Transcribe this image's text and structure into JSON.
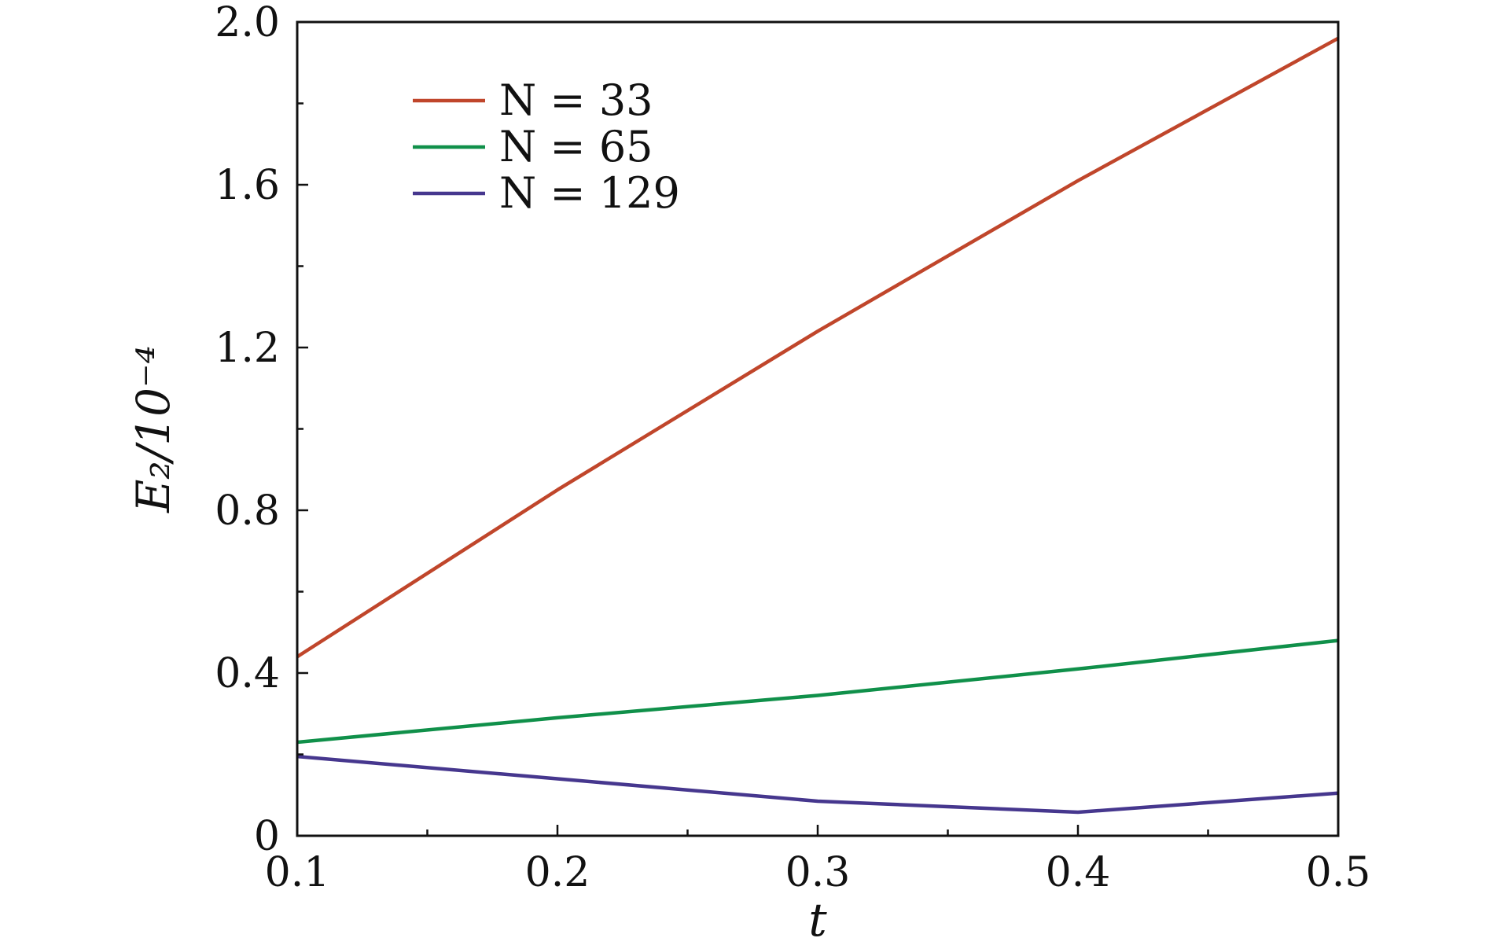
{
  "chart_data": {
    "type": "line",
    "title": "",
    "xlabel": "t",
    "ylabel": "E₂/10⁻⁴",
    "xlim": [
      0.1,
      0.5
    ],
    "ylim": [
      0,
      2.0
    ],
    "x_ticks": [
      0.1,
      0.2,
      0.3,
      0.4,
      0.5
    ],
    "x_tick_labels": [
      "0.1",
      "0.2",
      "0.3",
      "0.4",
      "0.5"
    ],
    "y_ticks": [
      0,
      0.4,
      0.8,
      1.2,
      1.6,
      2.0
    ],
    "y_tick_labels": [
      "0",
      "0.4",
      "0.8",
      "1.2",
      "1.6",
      "2.0"
    ],
    "grid": false,
    "legend_position": "top-left",
    "x": [
      0.1,
      0.2,
      0.3,
      0.4,
      0.5
    ],
    "series": [
      {
        "name": "N = 33",
        "color": "#c0462b",
        "values": [
          0.44,
          0.85,
          1.24,
          1.61,
          1.96
        ]
      },
      {
        "name": "N = 65",
        "color": "#10904a",
        "values": [
          0.23,
          0.29,
          0.345,
          0.41,
          0.48
        ]
      },
      {
        "name": "N = 129",
        "color": "#46378e",
        "values": [
          0.195,
          0.14,
          0.085,
          0.058,
          0.105
        ]
      }
    ]
  }
}
